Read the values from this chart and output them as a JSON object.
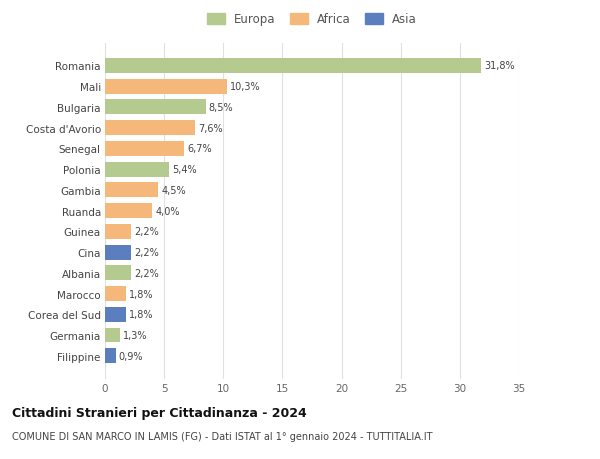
{
  "categories": [
    "Filippine",
    "Germania",
    "Corea del Sud",
    "Marocco",
    "Albania",
    "Cina",
    "Guinea",
    "Ruanda",
    "Gambia",
    "Polonia",
    "Senegal",
    "Costa d'Avorio",
    "Bulgaria",
    "Mali",
    "Romania"
  ],
  "values": [
    0.9,
    1.3,
    1.8,
    1.8,
    2.2,
    2.2,
    2.2,
    4.0,
    4.5,
    5.4,
    6.7,
    7.6,
    8.5,
    10.3,
    31.8
  ],
  "labels": [
    "0,9%",
    "1,3%",
    "1,8%",
    "1,8%",
    "2,2%",
    "2,2%",
    "2,2%",
    "4,0%",
    "4,5%",
    "5,4%",
    "6,7%",
    "7,6%",
    "8,5%",
    "10,3%",
    "31,8%"
  ],
  "continents": [
    "Asia",
    "Europa",
    "Asia",
    "Africa",
    "Europa",
    "Asia",
    "Africa",
    "Africa",
    "Africa",
    "Europa",
    "Africa",
    "Africa",
    "Europa",
    "Africa",
    "Europa"
  ],
  "continent_colors": {
    "Europa": "#b5ca8e",
    "Africa": "#f5b87a",
    "Asia": "#5b7fbe"
  },
  "legend_items": [
    "Europa",
    "Africa",
    "Asia"
  ],
  "legend_colors": [
    "#b5ca8e",
    "#f5b87a",
    "#5b7fbe"
  ],
  "title": "Cittadini Stranieri per Cittadinanza - 2024",
  "subtitle": "COMUNE DI SAN MARCO IN LAMIS (FG) - Dati ISTAT al 1° gennaio 2024 - TUTTITALIA.IT",
  "xlim": [
    0,
    35
  ],
  "xticks": [
    0,
    5,
    10,
    15,
    20,
    25,
    30,
    35
  ],
  "background_color": "#ffffff",
  "grid_color": "#e0e0e0",
  "bar_height": 0.72
}
